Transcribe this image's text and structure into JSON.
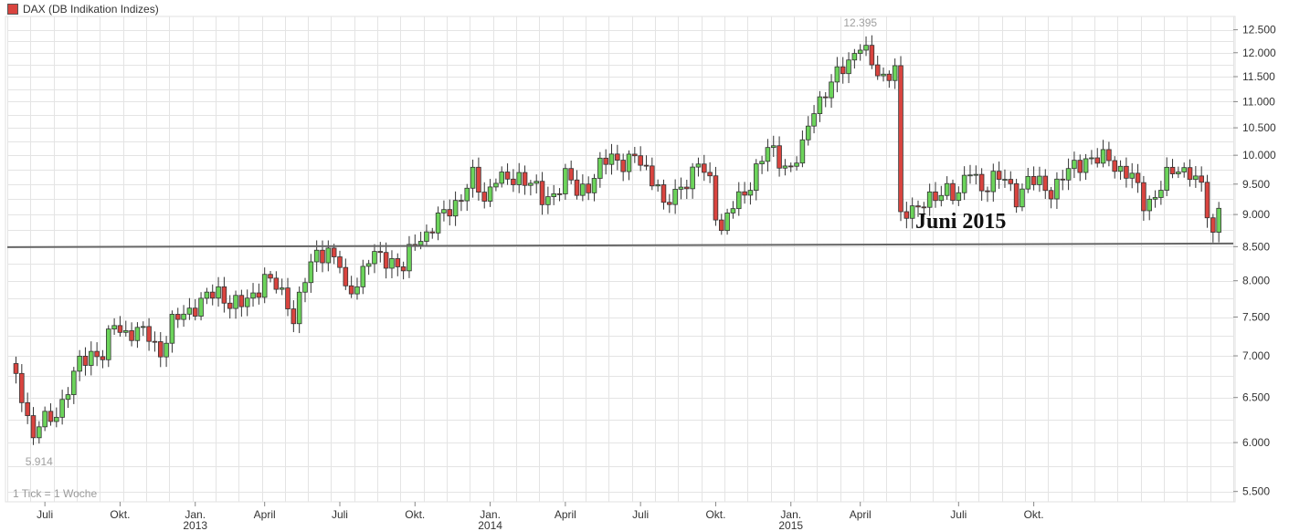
{
  "legend": {
    "label": "DAX (DB Indikation Indizes)",
    "color": "#d9443f"
  },
  "footer": {
    "tick_note": "1 Tick = 1 Woche"
  },
  "annotation": {
    "text": "Juni 2015"
  },
  "colors": {
    "up": "#6cd45b",
    "down": "#d9443f",
    "grid": "#e4e4e4",
    "support": "#666666"
  },
  "chart_data": {
    "type": "candlestick",
    "scale": "log",
    "ylim": [
      5400,
      12800
    ],
    "yticks": [
      {
        "value": 5500,
        "label": "5.500"
      },
      {
        "value": 6000,
        "label": "6.000"
      },
      {
        "value": 6500,
        "label": "6.500"
      },
      {
        "value": 7000,
        "label": "7.000"
      },
      {
        "value": 7500,
        "label": "7.500"
      },
      {
        "value": 8000,
        "label": "8.000"
      },
      {
        "value": 8500,
        "label": "8.500"
      },
      {
        "value": 9000,
        "label": "9.000"
      },
      {
        "value": 9500,
        "label": "9.500"
      },
      {
        "value": 10000,
        "label": "10.000"
      },
      {
        "value": 10500,
        "label": "10.500"
      },
      {
        "value": 11000,
        "label": "11.000"
      },
      {
        "value": 11500,
        "label": "11.500"
      },
      {
        "value": 12000,
        "label": "12.000"
      },
      {
        "value": 12500,
        "label": "12.500"
      }
    ],
    "xticks": [
      {
        "label": "Juli",
        "year": "",
        "week": 6
      },
      {
        "label": "Okt.",
        "year": "",
        "week": 19
      },
      {
        "label": "Jan.",
        "year": "2013",
        "week": 32
      },
      {
        "label": "April",
        "year": "",
        "week": 44
      },
      {
        "label": "Juli",
        "year": "",
        "week": 57
      },
      {
        "label": "Okt.",
        "year": "",
        "week": 70
      },
      {
        "label": "Jan.",
        "year": "2014",
        "week": 83
      },
      {
        "label": "April",
        "year": "",
        "week": 96
      },
      {
        "label": "Juli",
        "year": "",
        "week": 109
      },
      {
        "label": "Okt.",
        "year": "",
        "week": 122
      },
      {
        "label": "Jan.",
        "year": "2015",
        "week": 135
      },
      {
        "label": "April",
        "year": "",
        "week": 147
      },
      {
        "label": "Juli",
        "year": "",
        "week": 164
      },
      {
        "label": "Okt.",
        "year": "",
        "week": 177
      }
    ],
    "support_level": 8520,
    "extremes": [
      {
        "label": "12.395",
        "value": 12395,
        "week": 147,
        "position": "above"
      },
      {
        "label": "5.914",
        "value": 5914,
        "week": 5,
        "position": "below"
      }
    ],
    "weeks_total": 212,
    "close_anchors": [
      [
        0,
        6850
      ],
      [
        2,
        6550
      ],
      [
        4,
        6050
      ],
      [
        5,
        6200
      ],
      [
        7,
        6250
      ],
      [
        9,
        6450
      ],
      [
        12,
        6900
      ],
      [
        14,
        7050
      ],
      [
        16,
        7000
      ],
      [
        18,
        7400
      ],
      [
        20,
        7300
      ],
      [
        22,
        7300
      ],
      [
        24,
        7250
      ],
      [
        26,
        7050
      ],
      [
        28,
        7400
      ],
      [
        30,
        7550
      ],
      [
        32,
        7650
      ],
      [
        34,
        7750
      ],
      [
        36,
        7850
      ],
      [
        38,
        7700
      ],
      [
        40,
        7650
      ],
      [
        42,
        7800
      ],
      [
        44,
        8050
      ],
      [
        46,
        7900
      ],
      [
        48,
        7700
      ],
      [
        49,
        7500
      ],
      [
        51,
        8000
      ],
      [
        53,
        8400
      ],
      [
        55,
        8450
      ],
      [
        57,
        8200
      ],
      [
        58,
        7800
      ],
      [
        60,
        8000
      ],
      [
        62,
        8300
      ],
      [
        64,
        8350
      ],
      [
        66,
        8300
      ],
      [
        68,
        8150
      ],
      [
        70,
        8600
      ],
      [
        72,
        8700
      ],
      [
        74,
        8900
      ],
      [
        76,
        9100
      ],
      [
        78,
        9300
      ],
      [
        80,
        9600
      ],
      [
        82,
        9250
      ],
      [
        84,
        9650
      ],
      [
        86,
        9500
      ],
      [
        88,
        9650
      ],
      [
        90,
        9550
      ],
      [
        92,
        9200
      ],
      [
        94,
        9350
      ],
      [
        96,
        9650
      ],
      [
        98,
        9350
      ],
      [
        100,
        9500
      ],
      [
        102,
        9800
      ],
      [
        104,
        9950
      ],
      [
        106,
        9900
      ],
      [
        108,
        9950
      ],
      [
        110,
        9700
      ],
      [
        112,
        9550
      ],
      [
        113,
        9100
      ],
      [
        115,
        9300
      ],
      [
        117,
        9600
      ],
      [
        119,
        9850
      ],
      [
        121,
        9500
      ],
      [
        122,
        9050
      ],
      [
        123,
        8800
      ],
      [
        125,
        9150
      ],
      [
        127,
        9300
      ],
      [
        129,
        9800
      ],
      [
        131,
        10100
      ],
      [
        133,
        9900
      ],
      [
        135,
        9800
      ],
      [
        137,
        10100
      ],
      [
        139,
        10900
      ],
      [
        141,
        11200
      ],
      [
        143,
        11500
      ],
      [
        145,
        11850
      ],
      [
        147,
        12200
      ],
      [
        149,
        11700
      ],
      [
        151,
        11500
      ],
      [
        152,
        11600
      ],
      [
        153,
        11700
      ],
      [
        154,
        8900
      ],
      [
        156,
        9100
      ],
      [
        158,
        9250
      ],
      [
        160,
        9200
      ],
      [
        162,
        9450
      ],
      [
        164,
        9350
      ],
      [
        166,
        9700
      ],
      [
        168,
        9450
      ],
      [
        170,
        9600
      ],
      [
        172,
        9550
      ],
      [
        174,
        9300
      ],
      [
        176,
        9550
      ],
      [
        178,
        9500
      ],
      [
        180,
        9400
      ],
      [
        182,
        9600
      ],
      [
        184,
        9800
      ],
      [
        186,
        9950
      ],
      [
        188,
        9900
      ],
      [
        190,
        9950
      ],
      [
        192,
        9750
      ],
      [
        194,
        9600
      ],
      [
        196,
        9200
      ],
      [
        198,
        9300
      ],
      [
        200,
        9600
      ],
      [
        202,
        9800
      ],
      [
        204,
        9700
      ],
      [
        206,
        9400
      ],
      [
        208,
        8700
      ],
      [
        209,
        9100
      ]
    ]
  }
}
